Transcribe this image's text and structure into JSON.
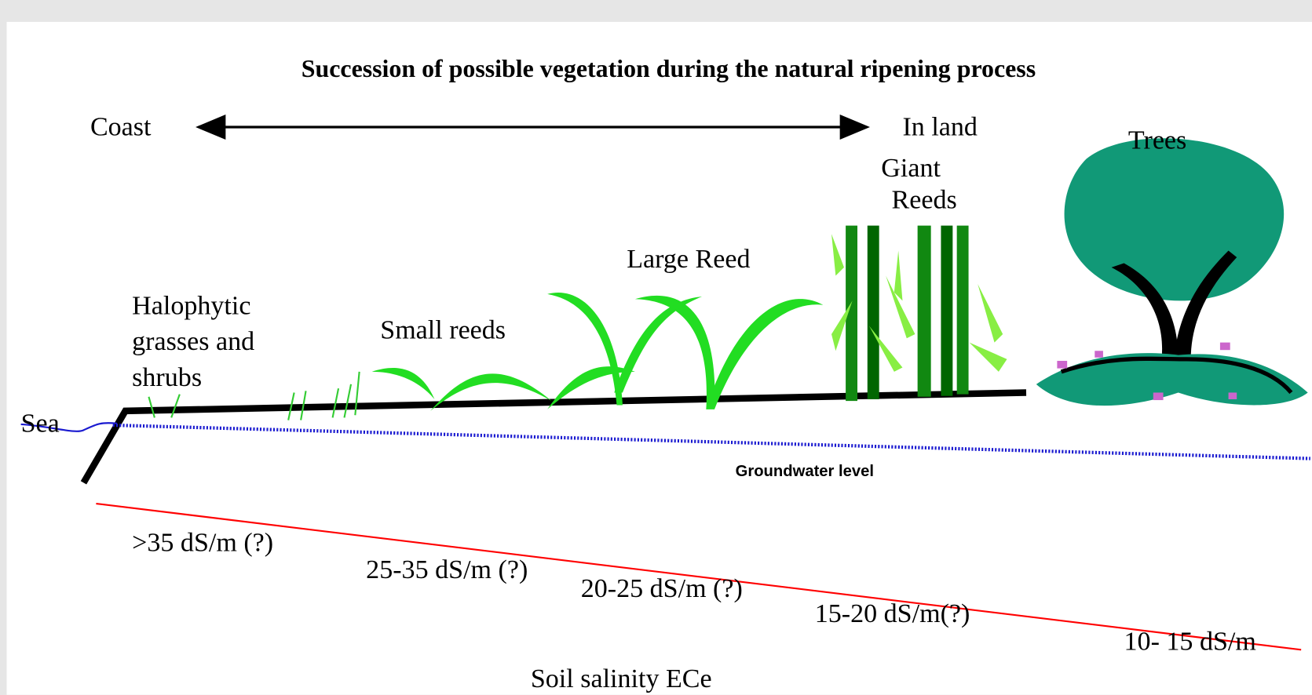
{
  "title": "Succession of possible vegetation during the natural ripening process",
  "direction": {
    "left": "Coast",
    "right": "In land"
  },
  "sea": "Sea",
  "groundwater": "Groundwater level",
  "zones": [
    {
      "label": [
        "Halophytic",
        "grasses and",
        "shrubs"
      ],
      "salinity": ">35 dS/m (?)"
    },
    {
      "label": [
        "Small reeds"
      ],
      "salinity": "25-35 dS/m (?)"
    },
    {
      "label": [
        "Large Reed"
      ],
      "salinity": "20-25 dS/m (?)"
    },
    {
      "label": [
        "Giant",
        "Reeds"
      ],
      "salinity": "15-20 dS/m(?)"
    },
    {
      "label": [
        "Trees"
      ],
      "salinity": "10- 15 dS/m"
    }
  ],
  "axis_label": "Soil salinity ECe"
}
